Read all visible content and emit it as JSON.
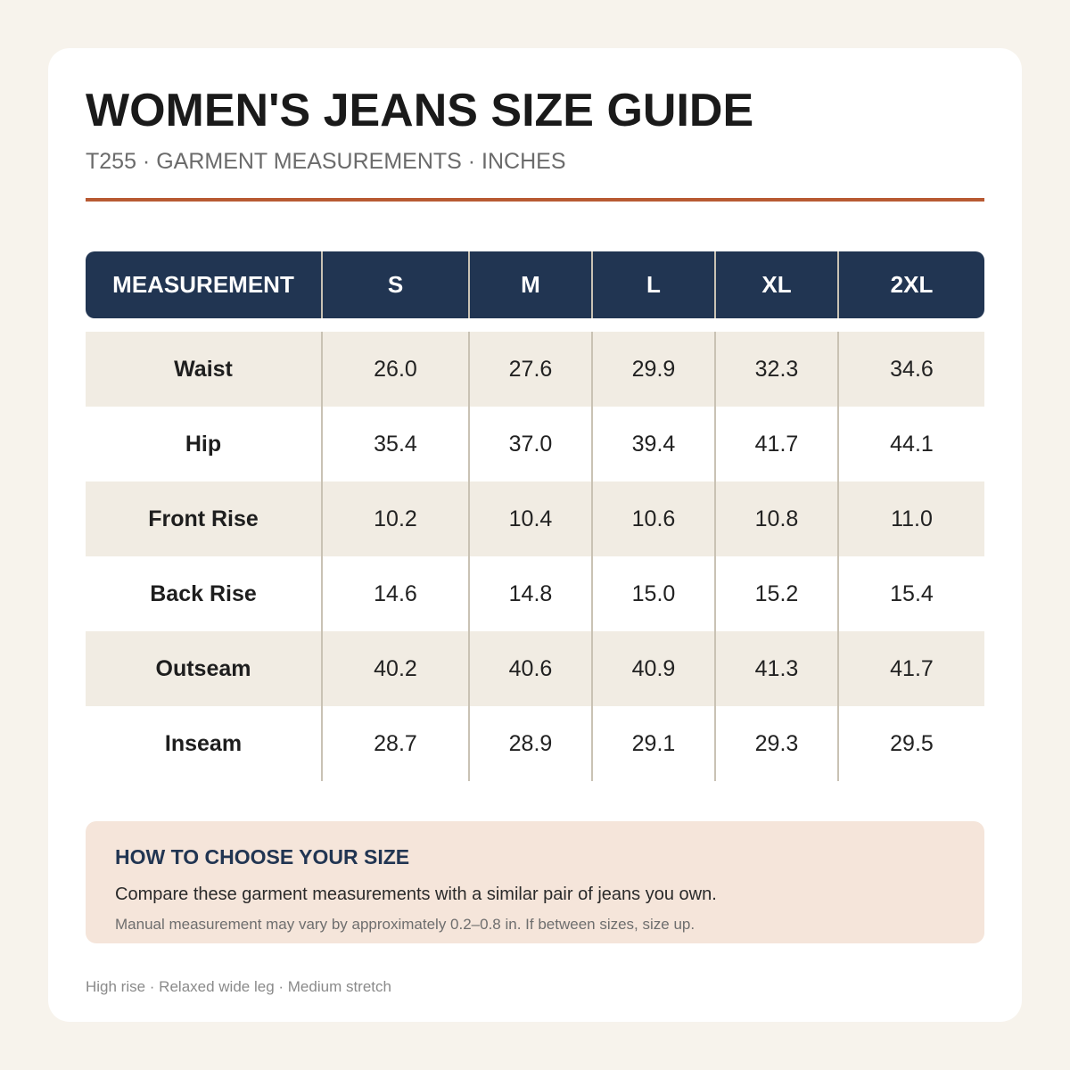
{
  "header": {
    "title": "WOMEN'S JEANS SIZE GUIDE",
    "subtitle": "T255 · GARMENT MEASUREMENTS · INCHES"
  },
  "colors": {
    "accent_rule": "#b85a32",
    "table_header": "#213552",
    "row_shade": "#f1ece3",
    "note_background": "#f5e5da"
  },
  "table": {
    "columns": [
      "MEASUREMENT",
      "S",
      "M",
      "L",
      "XL",
      "2XL"
    ],
    "rows": [
      {
        "label": "Waist",
        "values": [
          "26.0",
          "27.6",
          "29.9",
          "32.3",
          "34.6"
        ]
      },
      {
        "label": "Hip",
        "values": [
          "35.4",
          "37.0",
          "39.4",
          "41.7",
          "44.1"
        ]
      },
      {
        "label": "Front Rise",
        "values": [
          "10.2",
          "10.4",
          "10.6",
          "10.8",
          "11.0"
        ]
      },
      {
        "label": "Back Rise",
        "values": [
          "14.6",
          "14.8",
          "15.0",
          "15.2",
          "15.4"
        ]
      },
      {
        "label": "Outseam",
        "values": [
          "40.2",
          "40.6",
          "40.9",
          "41.3",
          "41.7"
        ]
      },
      {
        "label": "Inseam",
        "values": [
          "28.7",
          "28.9",
          "29.1",
          "29.3",
          "29.5"
        ]
      }
    ]
  },
  "note": {
    "title": "HOW TO CHOOSE YOUR SIZE",
    "main": "Compare these garment measurements with a similar pair of jeans you own.",
    "small": "Manual measurement may vary by approximately 0.2–0.8 in. If between sizes, size up."
  },
  "footer": {
    "text": "High rise · Relaxed wide leg · Medium stretch"
  }
}
